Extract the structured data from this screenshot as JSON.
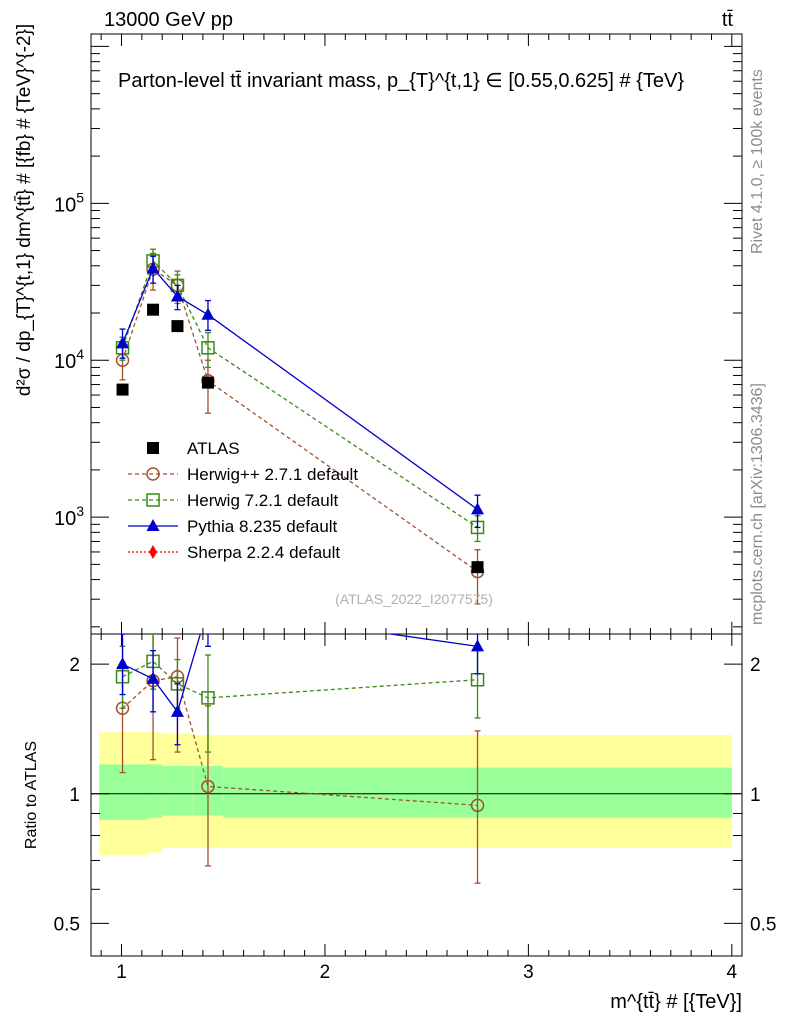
{
  "header": {
    "left": "13000 GeV pp",
    "right": "tt̄",
    "side_top": "Rivet 4.1.0, ≥ 100k events",
    "side_bottom": "mcplots.cern.ch [arXiv:1306.3436]"
  },
  "chart_data": {
    "type": "line",
    "title": "Parton-level tt̄ invariant mass, p_{T}^{t,1} ∈ [0.55,0.625] # {TeV}",
    "ylabel": "d²σ / dp_{T}^{t,1} dm^{tt̄} # [{fb} # {TeV}^{-2}]",
    "xlabel": "m^{tt̄} # [{TeV}]",
    "ratio_ylabel": "Ratio to ATLAS",
    "reference": "(ATLAS_2022_I2077575)",
    "xlim": [
      0.85,
      4.05
    ],
    "ylim": [
      180,
      1200000
    ],
    "ratio_ylim": [
      0.42,
      2.35
    ],
    "x_ticks": [
      1,
      2,
      3,
      4
    ],
    "y_ticks": [
      "10^3",
      "10^4",
      "10^5"
    ],
    "ratio_ticks": [
      0.5,
      1,
      2
    ],
    "legend_position": "middle-left",
    "bands": [
      {
        "x0": 0.89,
        "x1": 1.13,
        "inner_lo": 0.87,
        "inner_hi": 1.17,
        "outer_lo": 0.72,
        "outer_hi": 1.39
      },
      {
        "x0": 1.13,
        "x1": 1.2,
        "inner_lo": 0.88,
        "inner_hi": 1.17,
        "outer_lo": 0.73,
        "outer_hi": 1.39
      },
      {
        "x0": 1.2,
        "x1": 1.35,
        "inner_lo": 0.89,
        "inner_hi": 1.16,
        "outer_lo": 0.75,
        "outer_hi": 1.38
      },
      {
        "x0": 1.35,
        "x1": 1.5,
        "inner_lo": 0.89,
        "inner_hi": 1.16,
        "outer_lo": 0.75,
        "outer_hi": 1.37
      },
      {
        "x0": 1.5,
        "x1": 4.0,
        "inner_lo": 0.88,
        "inner_hi": 1.15,
        "outer_lo": 0.75,
        "outer_hi": 1.37
      }
    ],
    "series": [
      {
        "name": "ATLAS",
        "label": "ATLAS",
        "color": "#000000",
        "marker": "square-filled",
        "dash": "",
        "x": [
          1.005,
          1.155,
          1.275,
          1.425,
          2.75
        ],
        "y": [
          6500,
          21000,
          16500,
          7200,
          480
        ],
        "ratio": [
          1,
          1,
          1,
          1,
          1
        ]
      },
      {
        "name": "Herwig++",
        "label": "Herwig++ 2.7.1 default",
        "color": "#a0522d",
        "marker": "circle-open",
        "dash": "4,3",
        "x": [
          1.005,
          1.155,
          1.275,
          1.425,
          2.75
        ],
        "y": [
          10000,
          38000,
          30000,
          7400,
          450
        ],
        "yerr_lo": [
          7500,
          28000,
          23000,
          4600,
          280
        ],
        "yerr_hi": [
          12500,
          48000,
          37000,
          10000,
          620
        ],
        "ratio": [
          1.58,
          1.83,
          1.87,
          1.04,
          0.94
        ],
        "ratio_lo": [
          1.12,
          1.2,
          1.25,
          0.68,
          0.62
        ],
        "ratio_hi": [
          2.02,
          2.35,
          2.3,
          1.6,
          1.4
        ]
      },
      {
        "name": "Herwig 7.2.1",
        "label": "Herwig 7.2.1 default",
        "color": "#3a8a14",
        "marker": "square-open",
        "dash": "4,3",
        "x": [
          1.005,
          1.155,
          1.275,
          1.425,
          2.75
        ],
        "y": [
          12000,
          43000,
          30000,
          12000,
          860
        ],
        "yerr_lo": [
          10000,
          36000,
          25000,
          9000,
          700
        ],
        "yerr_hi": [
          14000,
          51000,
          35000,
          15000,
          1020
        ],
        "ratio": [
          1.87,
          2.03,
          1.8,
          1.67,
          1.84
        ],
        "ratio_lo": [
          1.58,
          1.75,
          1.58,
          1.25,
          1.5
        ],
        "ratio_hi": [
          2.2,
          2.35,
          2.05,
          2.1,
          2.18
        ]
      },
      {
        "name": "Pythia 8.235",
        "label": "Pythia 8.235 default",
        "color": "#0000cc",
        "marker": "triangle-filled",
        "dash": "",
        "x": [
          1.005,
          1.155,
          1.275,
          1.425,
          2.75
        ],
        "y": [
          12800,
          38500,
          25500,
          19500,
          1120
        ],
        "yerr_lo": [
          10300,
          31000,
          21000,
          15500,
          860
        ],
        "yerr_hi": [
          15800,
          46000,
          30000,
          24000,
          1380
        ],
        "ratio": [
          2.0,
          1.85,
          1.55,
          2.7,
          2.2
        ],
        "ratio_lo": [
          1.7,
          1.55,
          1.3,
          2.2,
          1.9
        ],
        "ratio_hi": [
          2.35,
          2.15,
          1.8,
          3.2,
          2.5
        ]
      },
      {
        "name": "Sherpa 2.2.4",
        "label": "Sherpa 2.2.4 default",
        "color": "#ff0000",
        "marker": "diamond-filled",
        "dash": "2,2",
        "x": [],
        "y": [],
        "ratio": []
      }
    ]
  }
}
